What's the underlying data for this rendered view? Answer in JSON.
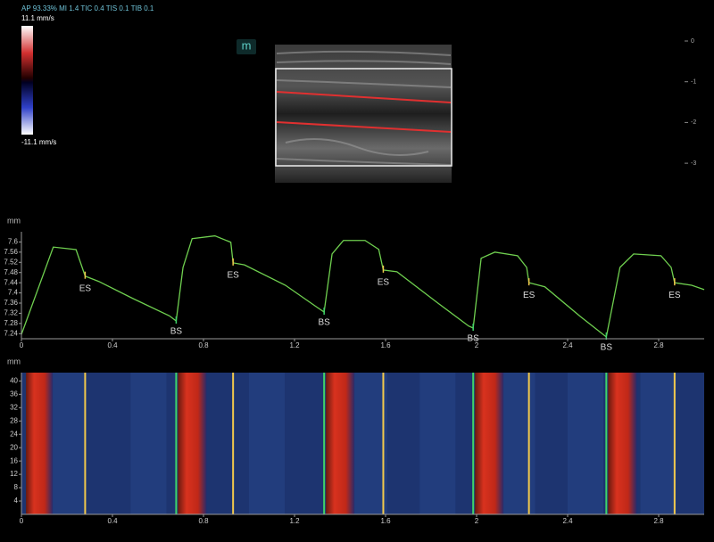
{
  "header": {
    "status": "AP 93.33%  MI 1.4 TIC 0.4 TIS 0.1 TIB 0.1",
    "scale_max": "11.1 mm/s",
    "scale_min": "-11.1 mm/s",
    "mode_icon": "m"
  },
  "depth_scale": [
    0,
    -1,
    -2,
    -3
  ],
  "chart_data": [
    {
      "type": "line",
      "y_label": "mm",
      "color": "#6fcf4f",
      "x": [
        0,
        0.14,
        0.24,
        0.28,
        0.34,
        0.49,
        0.65,
        0.68,
        0.71,
        0.75,
        0.85,
        0.92,
        0.93,
        0.98,
        1.16,
        1.3,
        1.33,
        1.365,
        1.415,
        1.51,
        1.57,
        1.59,
        1.65,
        1.83,
        1.965,
        1.985,
        2.02,
        2.08,
        2.18,
        2.22,
        2.23,
        2.3,
        2.455,
        2.57,
        2.63,
        2.69,
        2.81,
        2.855,
        2.87,
        2.945,
        3.0
      ],
      "values": [
        7.237,
        7.58,
        7.57,
        7.466,
        7.445,
        7.378,
        7.31,
        7.29,
        7.5,
        7.613,
        7.624,
        7.599,
        7.518,
        7.51,
        7.43,
        7.343,
        7.325,
        7.553,
        7.606,
        7.606,
        7.571,
        7.49,
        7.483,
        7.36,
        7.27,
        7.262,
        7.536,
        7.56,
        7.546,
        7.5,
        7.44,
        7.424,
        7.308,
        7.227,
        7.5,
        7.553,
        7.546,
        7.5,
        7.44,
        7.43,
        7.413
      ],
      "xlim": [
        0,
        3.0
      ],
      "ylim": [
        7.22,
        7.64
      ],
      "xticks": [
        0,
        0.4,
        0.8,
        1.2,
        1.6,
        2,
        2.4,
        2.8
      ],
      "yticks": [
        7.24,
        7.28,
        7.32,
        7.36,
        7.4,
        7.44,
        7.48,
        7.52,
        7.56,
        7.6
      ],
      "annotations": [
        {
          "text": "ES",
          "x": 0.28
        },
        {
          "text": "BS",
          "x": 0.68
        },
        {
          "text": "ES",
          "x": 0.93
        },
        {
          "text": "BS",
          "x": 1.33
        },
        {
          "text": "ES",
          "x": 1.59
        },
        {
          "text": "BS",
          "x": 1.985
        },
        {
          "text": "ES",
          "x": 2.23
        },
        {
          "text": "BS",
          "x": 2.57
        },
        {
          "text": "ES",
          "x": 2.87
        }
      ]
    },
    {
      "type": "heatmap",
      "y_label": "mm",
      "xlim": [
        0,
        3.0
      ],
      "ylim": [
        0,
        42.5
      ],
      "xticks": [
        0,
        0.4,
        0.8,
        1.2,
        1.6,
        2,
        2.4,
        2.8
      ],
      "yticks": [
        4,
        8,
        12,
        16,
        20,
        24,
        28,
        32,
        36,
        40
      ]
    }
  ]
}
